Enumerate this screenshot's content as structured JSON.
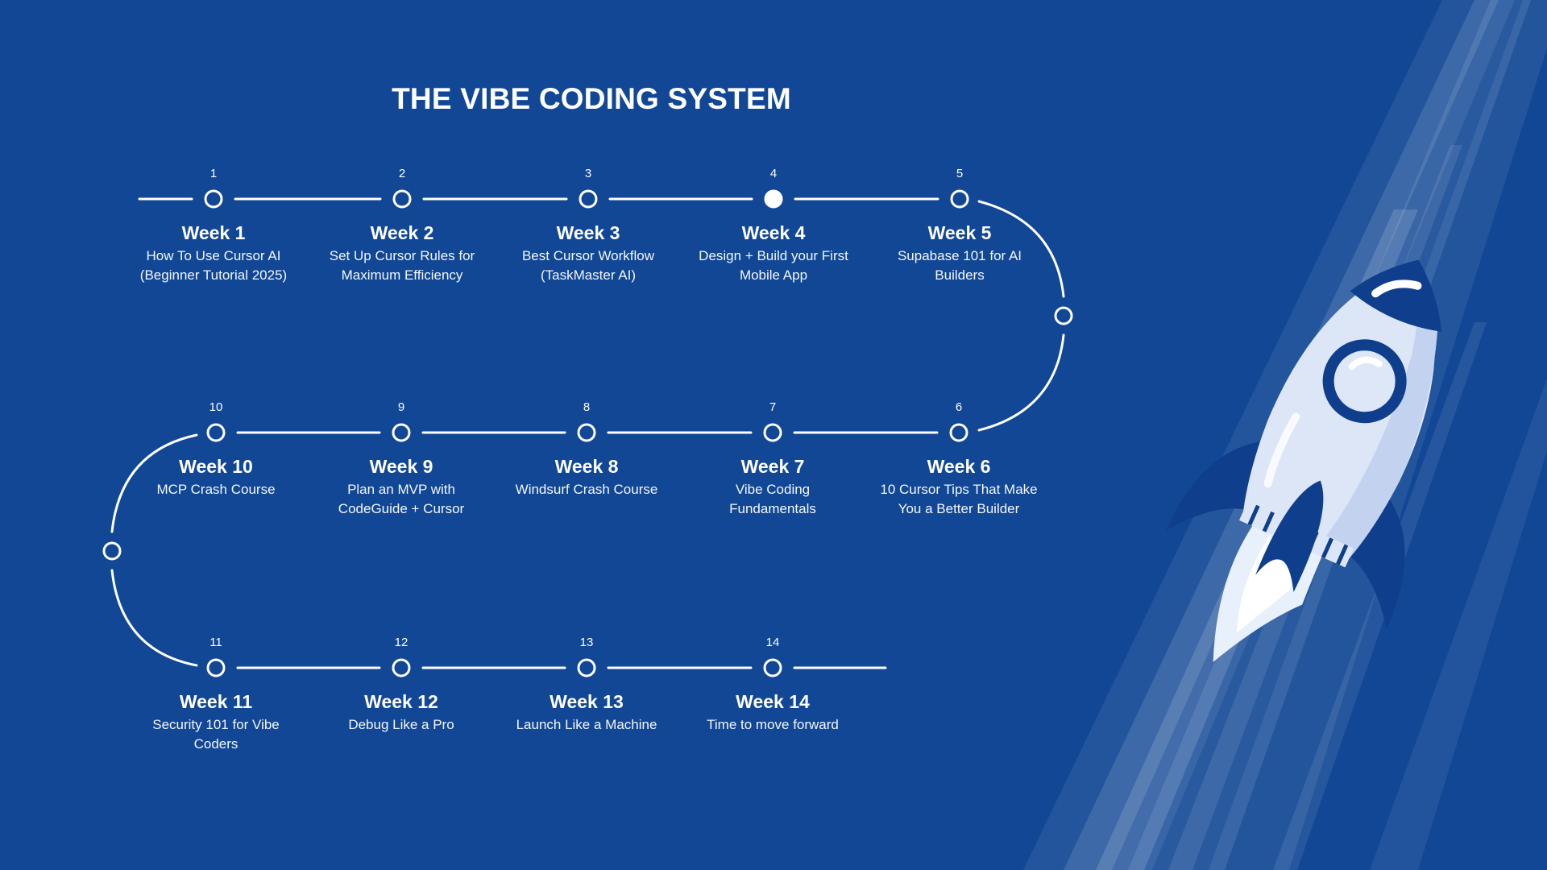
{
  "title": "THE VIBE CODING SYSTEM",
  "colors": {
    "background": "#114795",
    "line": "#ffffff",
    "rocket_body": "#dde7f8",
    "rocket_accent": "#0f3f8c"
  },
  "icons": [
    "rocket-illustration"
  ],
  "weeks": [
    {
      "num": "1",
      "week": "Week 1",
      "desc": "How To Use Cursor AI (Beginner Tutorial 2025)",
      "filled": false
    },
    {
      "num": "2",
      "week": "Week 2",
      "desc": "Set Up Cursor Rules for Maximum Efficiency",
      "filled": false
    },
    {
      "num": "3",
      "week": "Week 3",
      "desc": "Best Cursor Workflow (TaskMaster AI)",
      "filled": false
    },
    {
      "num": "4",
      "week": "Week 4",
      "desc": "Design + Build your First Mobile App",
      "filled": true
    },
    {
      "num": "5",
      "week": "Week 5",
      "desc": "Supabase 101 for AI Builders",
      "filled": false
    },
    {
      "num": "6",
      "week": "Week 6",
      "desc": "10 Cursor Tips That Make You a Better Builder",
      "filled": false
    },
    {
      "num": "7",
      "week": "Week 7",
      "desc": "Vibe Coding Fundamentals",
      "filled": false
    },
    {
      "num": "8",
      "week": "Week 8",
      "desc": "Windsurf Crash Course",
      "filled": false
    },
    {
      "num": "9",
      "week": "Week 9",
      "desc": "Plan an MVP with CodeGuide + Cursor",
      "filled": false
    },
    {
      "num": "10",
      "week": "Week 10",
      "desc": "MCP Crash Course",
      "filled": false
    },
    {
      "num": "11",
      "week": "Week 11",
      "desc": "Security 101 for Vibe Coders",
      "filled": false
    },
    {
      "num": "12",
      "week": "Week 12",
      "desc": "Debug Like a Pro",
      "filled": false
    },
    {
      "num": "13",
      "week": "Week 13",
      "desc": "Launch Like a Machine",
      "filled": false
    },
    {
      "num": "14",
      "week": "Week 14",
      "desc": "Time to move forward",
      "filled": false
    }
  ]
}
